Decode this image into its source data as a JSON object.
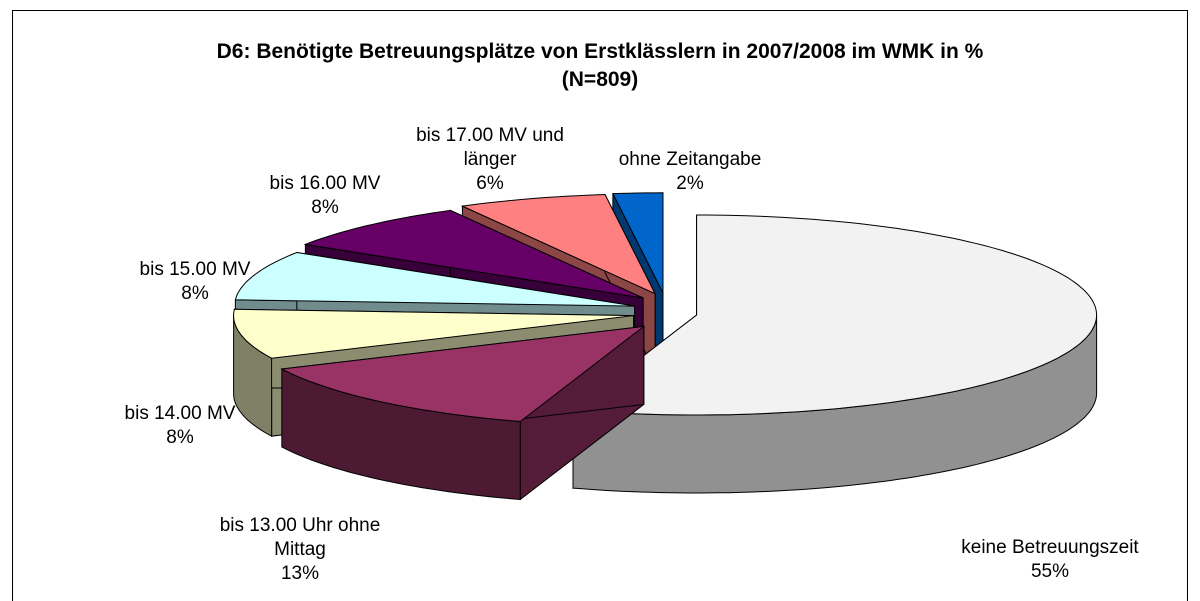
{
  "chart_data": {
    "type": "pie3d",
    "title": "D6:  Benötigte Betreuungsplätze von Erstklässlern in 2007/2008 im WMK in %",
    "subtitle": "(N=809)",
    "categories": [
      "keine Betreuungszeit",
      "bis 13.00 Uhr ohne Mittag",
      "bis 14.00 MV",
      "bis 15.00 MV",
      "bis 16.00 MV",
      "bis 17.00 MV und länger",
      "ohne Zeitangabe"
    ],
    "values": [
      55,
      13,
      8,
      8,
      8,
      6,
      2
    ],
    "value_labels": [
      "55%",
      "13%",
      "8%",
      "8%",
      "8%",
      "6%",
      "2%"
    ],
    "colors": [
      "#f2f2f2",
      "#993366",
      "#ffffcc",
      "#ccffff",
      "#660066",
      "#ff8080",
      "#0066cc"
    ]
  }
}
